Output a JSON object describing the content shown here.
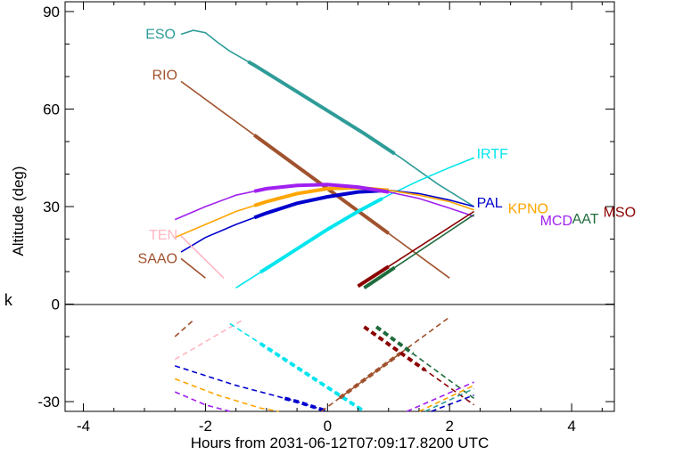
{
  "chart_data": {
    "type": "line",
    "title": "",
    "xlabel": "Hours from 2031-06-12T07:09:17.8200 UTC",
    "ylabel": "Altitude (deg)",
    "xlim": [
      -4.3,
      4.7
    ],
    "ylim": [
      -33,
      93
    ],
    "x_ticks": [
      -4,
      -2,
      0,
      2,
      4
    ],
    "y_ticks": [
      0,
      30,
      60,
      90
    ],
    "y_ticks_lower": [
      -30
    ],
    "x_tick_labels": [
      "-4",
      "-2",
      "0",
      "2",
      "4"
    ],
    "y_tick_labels": [
      "0",
      "30",
      "60",
      "90"
    ],
    "y_tick_labels_lower": [
      "-30"
    ],
    "grid": false,
    "legend": "labels at line ends",
    "stray_label": "k",
    "series": [
      {
        "name": "ESO",
        "color": "#2e9c98",
        "x": [
          -2.4,
          -2.2,
          -2.0,
          -1.8,
          -1.6,
          -1.2,
          -0.6,
          0.0,
          0.6,
          1.2,
          1.8,
          2.4
        ],
        "values": [
          83,
          84.2,
          83.5,
          80.5,
          77.8,
          73.5,
          66.5,
          59.5,
          52.5,
          45,
          37,
          30
        ],
        "thick_range": [
          -1.3,
          1.1
        ]
      },
      {
        "name": "RIO",
        "color": "#a0522d",
        "x": [
          -2.4,
          2.0
        ],
        "values": [
          68.5,
          8
        ],
        "thick_range": [
          -1.2,
          1.0
        ]
      },
      {
        "name": "IRTF",
        "color": "#00e5ee",
        "x": [
          -1.5,
          -1.0,
          -0.5,
          0.0,
          0.5,
          1.0,
          1.5,
          2.0,
          2.4
        ],
        "values": [
          5,
          11,
          17,
          23,
          28.5,
          33.5,
          38,
          42,
          45
        ],
        "thick_range": [
          -1.1,
          0.9
        ]
      },
      {
        "name": "PAL",
        "color": "#0000cd",
        "x": [
          -2.4,
          -2.0,
          -1.5,
          -1.0,
          -0.5,
          0.0,
          0.5,
          1.0,
          1.5,
          2.0,
          2.4
        ],
        "values": [
          16,
          20.5,
          24.5,
          28,
          31,
          33,
          34.5,
          35,
          34,
          32,
          30
        ],
        "thick_range": [
          -1.2,
          1.0
        ]
      },
      {
        "name": "KPNO",
        "color": "#ffa500",
        "x": [
          -2.5,
          -2.0,
          -1.5,
          -1.0,
          -0.5,
          0.0,
          0.5,
          1.0,
          1.5,
          2.0,
          2.4
        ],
        "values": [
          20.5,
          24.5,
          28.5,
          31.5,
          34,
          35.5,
          35.8,
          35,
          33.5,
          31.5,
          29
        ],
        "thick_range": [
          -1.2,
          1.0
        ]
      },
      {
        "name": "MCD",
        "color": "#a020f0",
        "x": [
          -2.5,
          -2.0,
          -1.5,
          -1.0,
          -0.5,
          0.0,
          0.5,
          1.0,
          1.5,
          2.0,
          2.4
        ],
        "values": [
          26,
          30,
          33.5,
          35.5,
          36.5,
          36.8,
          36,
          34.5,
          32.5,
          29.5,
          27
        ],
        "thick_range": [
          -1.2,
          1.0
        ]
      },
      {
        "name": "AAT",
        "color": "#1e6b3c",
        "x": [
          0.6,
          2.4
        ],
        "values": [
          5,
          27.5
        ],
        "thick_range": [
          0.6,
          1.1
        ]
      },
      {
        "name": "MSO",
        "color": "#8b0000",
        "x": [
          0.5,
          2.4
        ],
        "values": [
          5.5,
          28.5
        ],
        "thick_range": [
          0.5,
          1.0
        ]
      },
      {
        "name": "TEN",
        "color": "#ffb6c1",
        "x": [
          -2.4,
          -1.7
        ],
        "values": [
          21,
          8
        ],
        "thick_range": null
      },
      {
        "name": "SAAO",
        "color": "#a0522d",
        "x": [
          -2.4,
          -2.0
        ],
        "values": [
          14,
          8
        ],
        "thick_range": null
      }
    ],
    "lower_series": [
      {
        "name": "SAAO",
        "color": "#a0522d",
        "x": [
          -2.5,
          -2.2
        ],
        "values": [
          -10,
          -5
        ],
        "thick_range": null
      },
      {
        "name": "TEN",
        "color": "#ffb6c1",
        "x": [
          -2.5,
          -1.4
        ],
        "values": [
          -17,
          -5
        ],
        "thick_range": null
      },
      {
        "name": "IRTF",
        "color": "#00e5ee",
        "x": [
          -1.6,
          0.6
        ],
        "values": [
          -6,
          -33
        ],
        "thick_range": [
          -1.1,
          0.6
        ]
      },
      {
        "name": "PAL",
        "color": "#0000cd",
        "x": [
          -2.5,
          -1.5,
          -0.5,
          0.0
        ],
        "values": [
          -19,
          -25,
          -30,
          -33
        ],
        "thick_range": [
          -0.7,
          0.0
        ]
      },
      {
        "name": "KPNO",
        "color": "#ffa500",
        "x": [
          -2.5,
          -1.8,
          -1.1,
          -0.8
        ],
        "values": [
          -23,
          -28,
          -32,
          -33
        ],
        "thick_range": null
      },
      {
        "name": "MCD",
        "color": "#a020f0",
        "x": [
          -2.5,
          -2.0,
          -1.6
        ],
        "values": [
          -27,
          -31,
          -33
        ],
        "thick_range": null
      },
      {
        "name": "RIO",
        "color": "#a0522d",
        "x": [
          -0.1,
          2.0
        ],
        "values": [
          -33,
          -4
        ],
        "thick_range": [
          0.2,
          1.2
        ]
      },
      {
        "name": "MSO",
        "color": "#8b0000",
        "x": [
          0.6,
          2.4
        ],
        "values": [
          -7,
          -31
        ],
        "thick_range": [
          0.6,
          1.6
        ]
      },
      {
        "name": "AAT",
        "color": "#1e6b3c",
        "x": [
          0.8,
          2.4
        ],
        "values": [
          -7,
          -29
        ],
        "thick_range": [
          0.8,
          1.4
        ]
      },
      {
        "name": "ESO",
        "color": "#2e9c98",
        "x": [
          1.6,
          2.4
        ],
        "values": [
          -33,
          -26
        ],
        "thick_range": null
      },
      {
        "name": "MCD",
        "color": "#a020f0",
        "x": [
          1.3,
          2.4
        ],
        "values": [
          -33,
          -24
        ],
        "thick_range": null
      },
      {
        "name": "KPNO",
        "color": "#ffa500",
        "x": [
          1.5,
          2.4
        ],
        "values": [
          -33,
          -25
        ],
        "thick_range": null
      },
      {
        "name": "PAL",
        "color": "#0000cd",
        "x": [
          1.7,
          2.4
        ],
        "values": [
          -33,
          -28
        ],
        "thick_range": null
      }
    ]
  }
}
